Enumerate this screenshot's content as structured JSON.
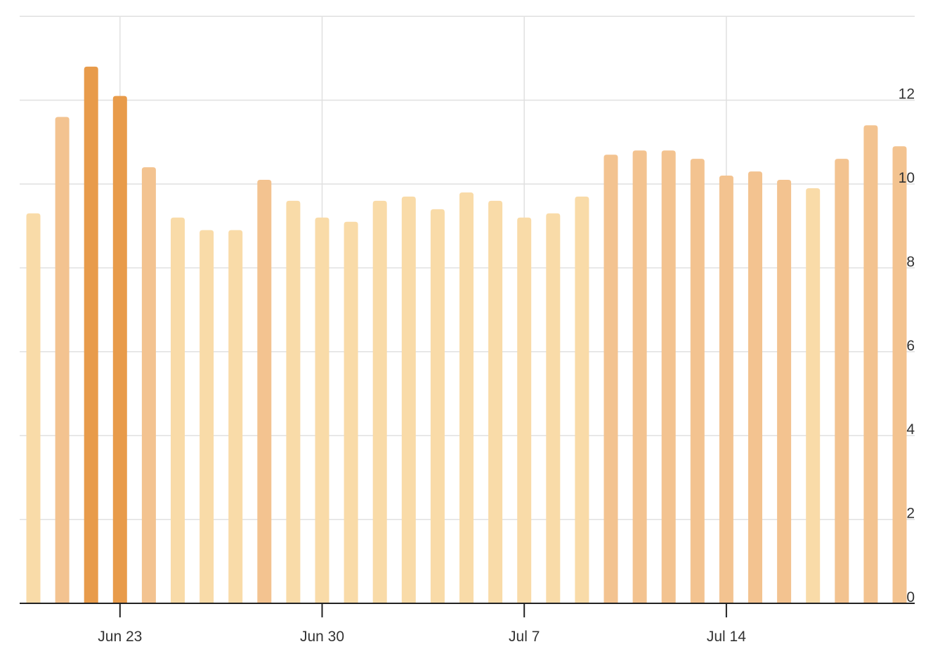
{
  "chart_data": {
    "type": "bar",
    "title": "",
    "xlabel": "",
    "ylabel": "",
    "x": [
      "Jun 20",
      "Jun 21",
      "Jun 22",
      "Jun 23",
      "Jun 24",
      "Jun 25",
      "Jun 26",
      "Jun 27",
      "Jun 28",
      "Jun 29",
      "Jun 30",
      "Jul 1",
      "Jul 2",
      "Jul 3",
      "Jul 4",
      "Jul 5",
      "Jul 6",
      "Jul 7",
      "Jul 8",
      "Jul 9",
      "Jul 10",
      "Jul 11",
      "Jul 12",
      "Jul 13",
      "Jul 14",
      "Jul 15",
      "Jul 16",
      "Jul 17",
      "Jul 18",
      "Jul 19",
      "Jul 20"
    ],
    "values": [
      9.3,
      11.6,
      12.8,
      12.1,
      10.4,
      9.2,
      8.9,
      8.9,
      10.1,
      9.6,
      9.2,
      9.1,
      9.6,
      9.7,
      9.4,
      9.8,
      9.6,
      9.2,
      9.3,
      9.7,
      10.7,
      10.8,
      10.8,
      10.6,
      10.2,
      10.3,
      10.1,
      9.9,
      10.6,
      11.4,
      10.9
    ],
    "ylim": [
      0,
      14
    ],
    "yticks": [
      "0",
      "2",
      "4",
      "6",
      "8",
      "10",
      "12"
    ],
    "xticks": [
      "Jun 23",
      "Jun 30",
      "Jul 7",
      "Jul 14"
    ],
    "xtick_indices": [
      3,
      10,
      17,
      24
    ],
    "y_axis_position": "right",
    "grid": true,
    "legend": "none",
    "colors": {
      "low": "#f9dba8",
      "mid": "#f3c390",
      "high": "#e89b4a",
      "grid": "#e0e0e0",
      "baseline": "#222222",
      "text": "#333333"
    },
    "color_thresholds": [
      10.0,
      12.0
    ]
  }
}
